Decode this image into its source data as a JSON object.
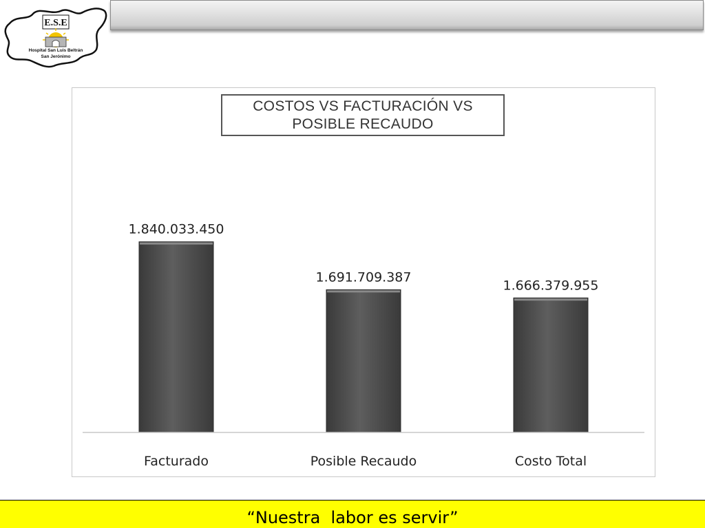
{
  "header": {
    "logo": {
      "title": "E.S.E",
      "line1": "Hospital San Luis Beltrán",
      "line2": "San Jerónimo"
    }
  },
  "chart_data": {
    "type": "bar",
    "title": "COSTOS  VS  FACTURACIÓN  VS\nPOSIBLE RECAUDO",
    "categories": [
      "Facturado",
      "Posible Recaudo",
      "Costo Total"
    ],
    "values": [
      1840033450,
      1691709387,
      1666379955
    ],
    "data_labels": [
      "1.840.033.450",
      "1.691.709.387",
      "1.666.379.955"
    ],
    "xlabel": "",
    "ylabel": "",
    "ylim": [
      1250000000,
      1950000000
    ],
    "grid": false,
    "legend": "none",
    "bar_color": "#555555"
  },
  "footer": {
    "slogan": "“Nuestra  labor es servir”"
  }
}
